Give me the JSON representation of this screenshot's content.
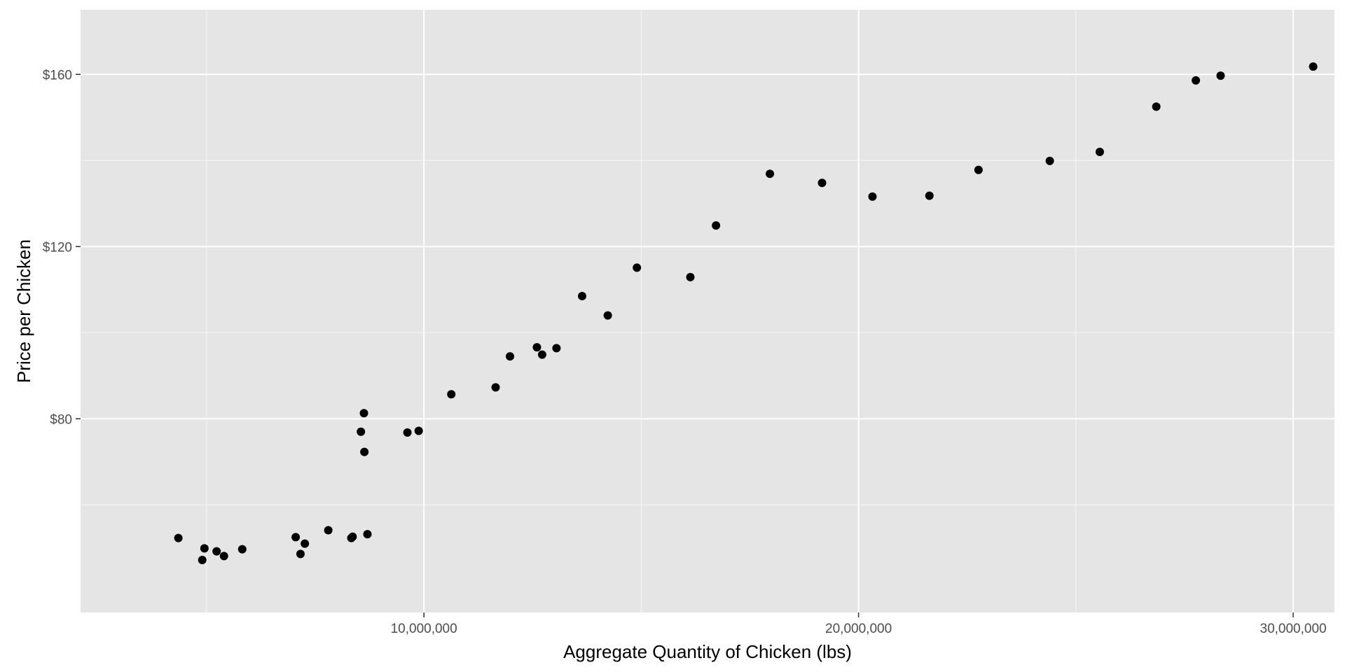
{
  "chart_data": {
    "type": "scatter",
    "title": "",
    "xlabel": "Aggregate Quantity of Chicken (lbs)",
    "ylabel": "Price per Chicken",
    "xlim": [
      2100000,
      30950000
    ],
    "ylim": [
      35,
      175
    ],
    "x_ticks": [
      {
        "value": 10000000,
        "label": "10,000,000"
      },
      {
        "value": 20000000,
        "label": "20,000,000"
      },
      {
        "value": 30000000,
        "label": "30,000,000"
      }
    ],
    "x_minor_ticks": [
      5000000,
      15000000,
      25000000
    ],
    "y_ticks": [
      {
        "value": 80,
        "label": "$80"
      },
      {
        "value": 120,
        "label": "$120"
      },
      {
        "value": 160,
        "label": "$160"
      }
    ],
    "y_minor_ticks": [
      60,
      100,
      140
    ],
    "grid": true,
    "legend": "none",
    "colors": {
      "panel": "#e5e5e5",
      "grid": "#ffffff",
      "point": "#000000"
    },
    "points": [
      {
        "x": 4350000,
        "y": 52.3
      },
      {
        "x": 4950000,
        "y": 49.9
      },
      {
        "x": 4900000,
        "y": 47.2
      },
      {
        "x": 5230000,
        "y": 49.2
      },
      {
        "x": 5400000,
        "y": 48.1
      },
      {
        "x": 5820000,
        "y": 49.7
      },
      {
        "x": 7050000,
        "y": 52.5
      },
      {
        "x": 7160000,
        "y": 48.6
      },
      {
        "x": 7260000,
        "y": 51.0
      },
      {
        "x": 7800000,
        "y": 54.1
      },
      {
        "x": 8330000,
        "y": 52.3
      },
      {
        "x": 8360000,
        "y": 52.6
      },
      {
        "x": 8700000,
        "y": 53.2
      },
      {
        "x": 8550000,
        "y": 77.0
      },
      {
        "x": 8620000,
        "y": 81.3
      },
      {
        "x": 8630000,
        "y": 72.3
      },
      {
        "x": 9620000,
        "y": 76.8
      },
      {
        "x": 9880000,
        "y": 77.2
      },
      {
        "x": 10630000,
        "y": 85.7
      },
      {
        "x": 11650000,
        "y": 87.3
      },
      {
        "x": 11980000,
        "y": 94.5
      },
      {
        "x": 12600000,
        "y": 96.6
      },
      {
        "x": 12720000,
        "y": 94.9
      },
      {
        "x": 13050000,
        "y": 96.4
      },
      {
        "x": 13640000,
        "y": 108.5
      },
      {
        "x": 14230000,
        "y": 104.0
      },
      {
        "x": 14900000,
        "y": 115.1
      },
      {
        "x": 16130000,
        "y": 112.9
      },
      {
        "x": 16720000,
        "y": 124.9
      },
      {
        "x": 17960000,
        "y": 136.9
      },
      {
        "x": 19160000,
        "y": 134.8
      },
      {
        "x": 20320000,
        "y": 131.6
      },
      {
        "x": 21630000,
        "y": 131.8
      },
      {
        "x": 22760000,
        "y": 137.8
      },
      {
        "x": 24400000,
        "y": 139.9
      },
      {
        "x": 25550000,
        "y": 142.0
      },
      {
        "x": 26850000,
        "y": 152.5
      },
      {
        "x": 27760000,
        "y": 158.6
      },
      {
        "x": 28330000,
        "y": 159.7
      },
      {
        "x": 30460000,
        "y": 161.8
      }
    ]
  }
}
